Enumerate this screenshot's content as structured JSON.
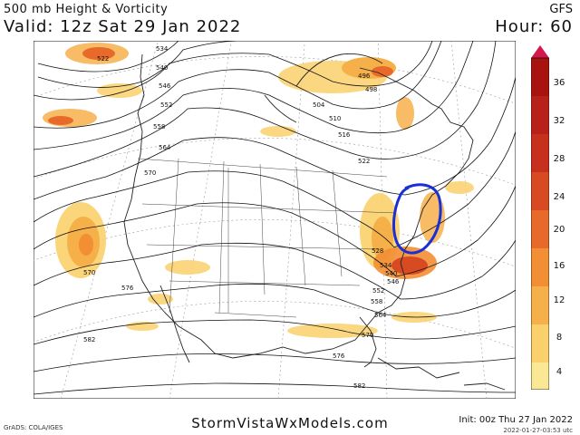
{
  "header": {
    "product": "500 mb Height & Vorticity",
    "valid": "Valid: 12z Sat 29 Jan 2022",
    "model": "GFS",
    "hour": "Hour: 60"
  },
  "colorbar": {
    "ticks": [
      "36",
      "32",
      "28",
      "24",
      "20",
      "16",
      "12",
      "8",
      "4"
    ],
    "colors": [
      "#d6174a",
      "#a8130f",
      "#c6301c",
      "#d84a22",
      "#e86a2a",
      "#f28e34",
      "#f6b04a",
      "#f9d06a",
      "#fbe894"
    ]
  },
  "contour_labels": [
    "522",
    "534",
    "540",
    "546",
    "552",
    "558",
    "564",
    "570",
    "496",
    "498",
    "504",
    "510",
    "516",
    "522",
    "528",
    "534",
    "540",
    "546",
    "552",
    "558",
    "564",
    "570",
    "576",
    "582",
    "576",
    "582",
    "570"
  ],
  "annotation": {
    "shape": "hand-drawn circle",
    "color": "#1a2fd6"
  },
  "footer": {
    "credit": "GrADS: COLA/IGES",
    "site": "StormVistaWxModels.com",
    "init": "Init: 00z Thu 27 Jan 2022",
    "generated": "2022-01-27-03:53 utc"
  }
}
